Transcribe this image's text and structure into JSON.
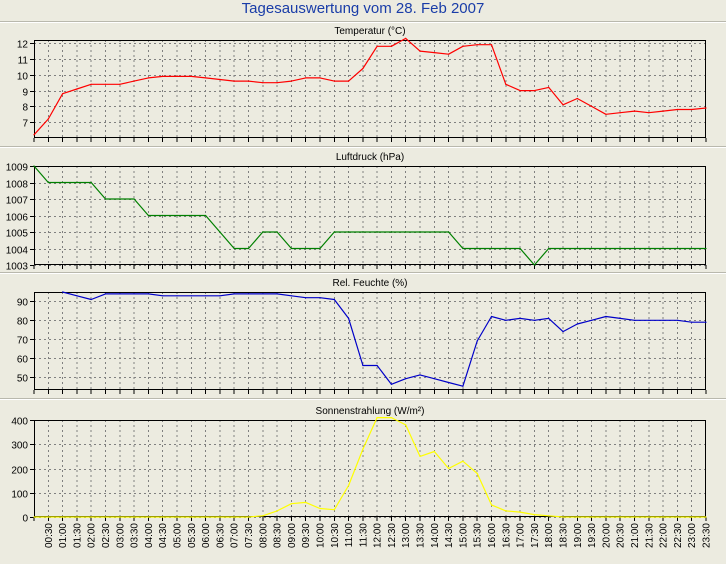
{
  "title": "Tagesauswertung vom 28. Feb 2007",
  "x_labels": [
    "00:30",
    "01:00",
    "01:30",
    "02:00",
    "02:30",
    "03:00",
    "03:30",
    "04:00",
    "04:30",
    "05:00",
    "05:30",
    "06:00",
    "06:30",
    "07:00",
    "07:30",
    "08:00",
    "08:30",
    "09:00",
    "09:30",
    "10:00",
    "10:30",
    "11:00",
    "11:30",
    "12:00",
    "12:30",
    "13:00",
    "13:30",
    "14:00",
    "14:30",
    "15:00",
    "15:30",
    "16:00",
    "16:30",
    "17:00",
    "17:30",
    "18:00",
    "18:30",
    "19:00",
    "19:30",
    "20:00",
    "20:30",
    "21:00",
    "21:30",
    "22:00",
    "22:30",
    "23:00",
    "23:30"
  ],
  "chart_data": [
    {
      "type": "line",
      "title": "Temperatur (°C)",
      "color": "#ff0000",
      "ylim": [
        6,
        12.2
      ],
      "yticks": [
        7,
        8,
        9,
        10,
        11,
        12
      ],
      "grid": true,
      "x": [
        0,
        0.5,
        1,
        1.5,
        2,
        2.5,
        3,
        3.5,
        4,
        4.5,
        5,
        5.5,
        6,
        6.5,
        7,
        7.5,
        8,
        8.5,
        9,
        9.5,
        10,
        10.5,
        11,
        11.5,
        12,
        12.5,
        13,
        13.5,
        14,
        14.5,
        15,
        15.5,
        16,
        16.5,
        17,
        17.5,
        18,
        18.5,
        19,
        19.5,
        20,
        20.5,
        21,
        21.5,
        22,
        22.5,
        23,
        23.5
      ],
      "values": [
        6.2,
        7.2,
        8.8,
        9.1,
        9.4,
        9.4,
        9.4,
        9.6,
        9.8,
        9.9,
        9.9,
        9.9,
        9.8,
        9.7,
        9.6,
        9.6,
        9.5,
        9.5,
        9.6,
        9.8,
        9.8,
        9.6,
        9.6,
        10.4,
        11.8,
        11.8,
        12.3,
        11.5,
        11.4,
        11.3,
        11.8,
        11.9,
        11.9,
        9.4,
        9.0,
        9.0,
        9.2,
        8.1,
        8.5,
        8.0,
        7.5,
        7.6,
        7.7,
        7.6,
        7.7,
        7.8,
        7.8,
        7.9
      ]
    },
    {
      "type": "line",
      "title": "Luftdruck (hPa)",
      "color": "#008000",
      "ylim": [
        1003,
        1009
      ],
      "yticks": [
        1003,
        1004,
        1005,
        1006,
        1007,
        1008,
        1009
      ],
      "grid": true,
      "x": [
        0,
        0.5,
        1,
        1.5,
        2,
        2.5,
        3,
        3.5,
        4,
        4.5,
        5,
        5.5,
        6,
        6.5,
        7,
        7.5,
        8,
        8.5,
        9,
        9.5,
        10,
        10.5,
        11,
        11.5,
        12,
        12.5,
        13,
        13.5,
        14,
        14.5,
        15,
        15.5,
        16,
        16.5,
        17,
        17.5,
        18,
        18.5,
        19,
        19.5,
        20,
        20.5,
        21,
        21.5,
        22,
        22.5,
        23,
        23.5
      ],
      "values": [
        1009,
        1008,
        1008,
        1008,
        1008,
        1007,
        1007,
        1007,
        1006,
        1006,
        1006,
        1006,
        1006,
        1005,
        1004,
        1004,
        1005,
        1005,
        1004,
        1004,
        1004,
        1005,
        1005,
        1005,
        1005,
        1005,
        1005,
        1005,
        1005,
        1005,
        1004,
        1004,
        1004,
        1004,
        1004,
        1003,
        1004,
        1004,
        1004,
        1004,
        1004,
        1004,
        1004,
        1004,
        1004,
        1004,
        1004,
        1004
      ]
    },
    {
      "type": "line",
      "title": "Rel. Feuchte (%)",
      "color": "#0000c8",
      "ylim": [
        43,
        95
      ],
      "yticks": [
        50,
        60,
        70,
        80,
        90
      ],
      "grid": true,
      "x": [
        1,
        1.5,
        2,
        2.5,
        3,
        3.5,
        4,
        4.5,
        5,
        5.5,
        6,
        6.5,
        7,
        7.5,
        8,
        8.5,
        9,
        9.5,
        10,
        10.5,
        11,
        11.5,
        12,
        12.5,
        13,
        13.5,
        14,
        14.5,
        15,
        15.5,
        16,
        16.5,
        17,
        17.5,
        18,
        18.5,
        19,
        19.5,
        20,
        20.5,
        21,
        21.5,
        22,
        22.5,
        23,
        23.5
      ],
      "values": [
        95,
        93,
        91,
        94,
        94,
        94,
        94,
        93,
        93,
        93,
        93,
        93,
        94,
        94,
        94,
        94,
        93,
        92,
        92,
        91,
        81,
        56,
        56,
        46,
        49,
        51,
        49,
        47,
        45,
        69,
        82,
        80,
        81,
        80,
        81,
        74,
        78,
        80,
        82,
        81,
        80,
        80,
        80,
        80,
        79,
        79
      ]
    },
    {
      "type": "line",
      "title": "Sonnenstrahlung (W/m²)",
      "color": "#ffff00",
      "ylim": [
        0,
        400
      ],
      "yticks": [
        0,
        100,
        200,
        300,
        400
      ],
      "grid": true,
      "x": [
        0,
        0.5,
        1,
        1.5,
        2,
        2.5,
        3,
        3.5,
        4,
        4.5,
        5,
        5.5,
        6,
        6.5,
        7,
        7.5,
        8,
        8.5,
        9,
        9.5,
        10,
        10.5,
        11,
        11.5,
        12,
        12.5,
        13,
        13.5,
        14,
        14.5,
        15,
        15.5,
        16,
        16.5,
        17,
        17.5,
        18,
        18.5,
        19,
        19.5,
        20,
        20.5,
        21,
        21.5,
        22,
        22.5,
        23,
        23.5
      ],
      "values": [
        0,
        0,
        0,
        0,
        0,
        0,
        0,
        0,
        0,
        0,
        0,
        0,
        0,
        0,
        0,
        0,
        5,
        25,
        55,
        60,
        35,
        30,
        130,
        280,
        410,
        410,
        380,
        250,
        270,
        200,
        230,
        180,
        50,
        25,
        20,
        10,
        5,
        0,
        0,
        0,
        0,
        0,
        0,
        0,
        0,
        0,
        0,
        0
      ]
    }
  ]
}
